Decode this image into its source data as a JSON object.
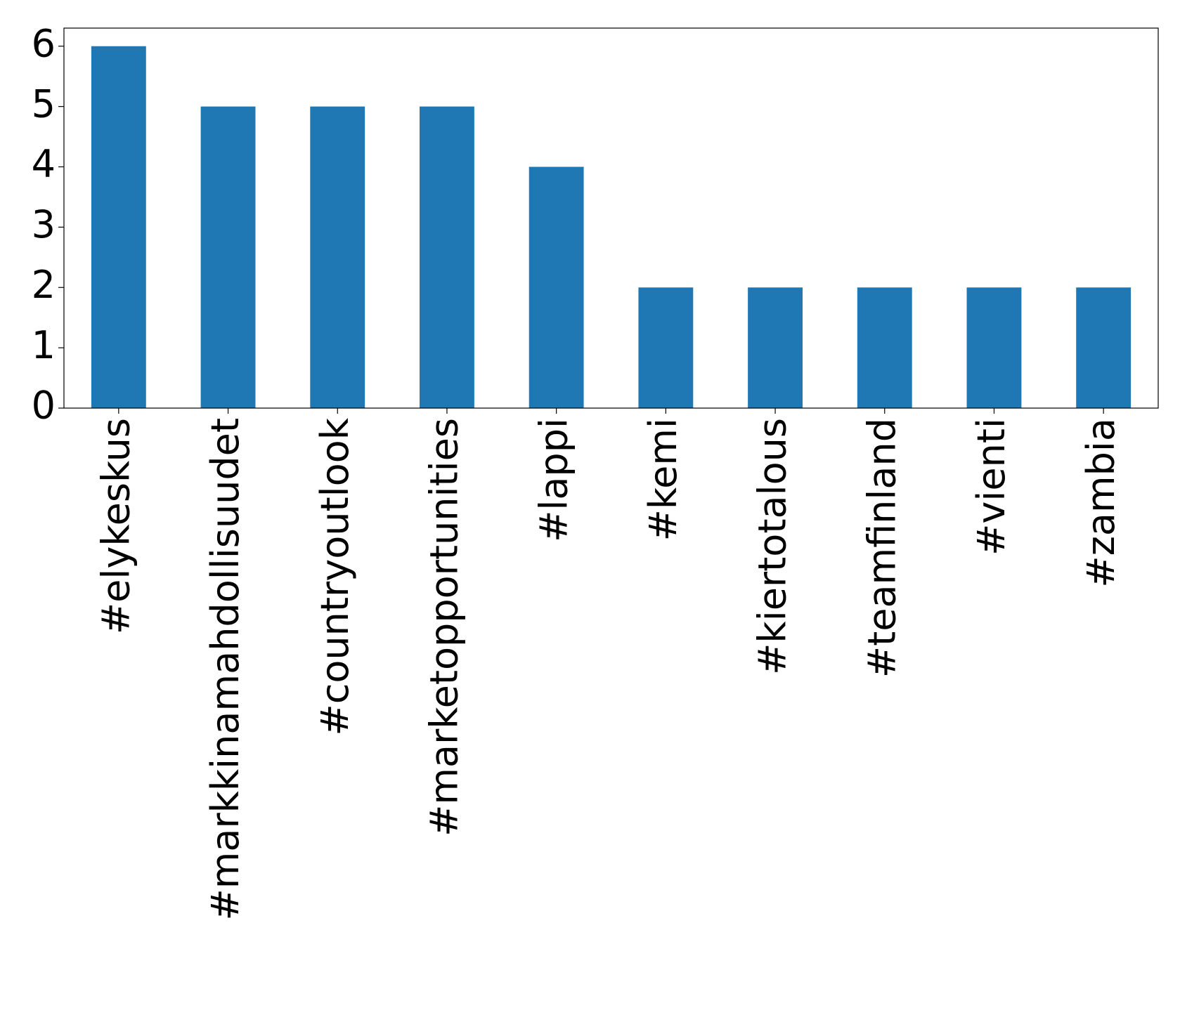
{
  "chart_data": {
    "type": "bar",
    "categories": [
      "#elykeskus",
      "#markkinamahdollisuudet",
      "#countryoutlook",
      "#marketopportunities",
      "#lappi",
      "#kemi",
      "#kiertotalous",
      "#teamfinland",
      "#vienti",
      "#zambia"
    ],
    "values": [
      6,
      5,
      5,
      5,
      4,
      2,
      2,
      2,
      2,
      2
    ],
    "color": "#1f77b4",
    "ylim": [
      0,
      6.3
    ],
    "yticks": [
      0,
      1,
      2,
      3,
      4,
      5,
      6
    ],
    "grid": false
  }
}
